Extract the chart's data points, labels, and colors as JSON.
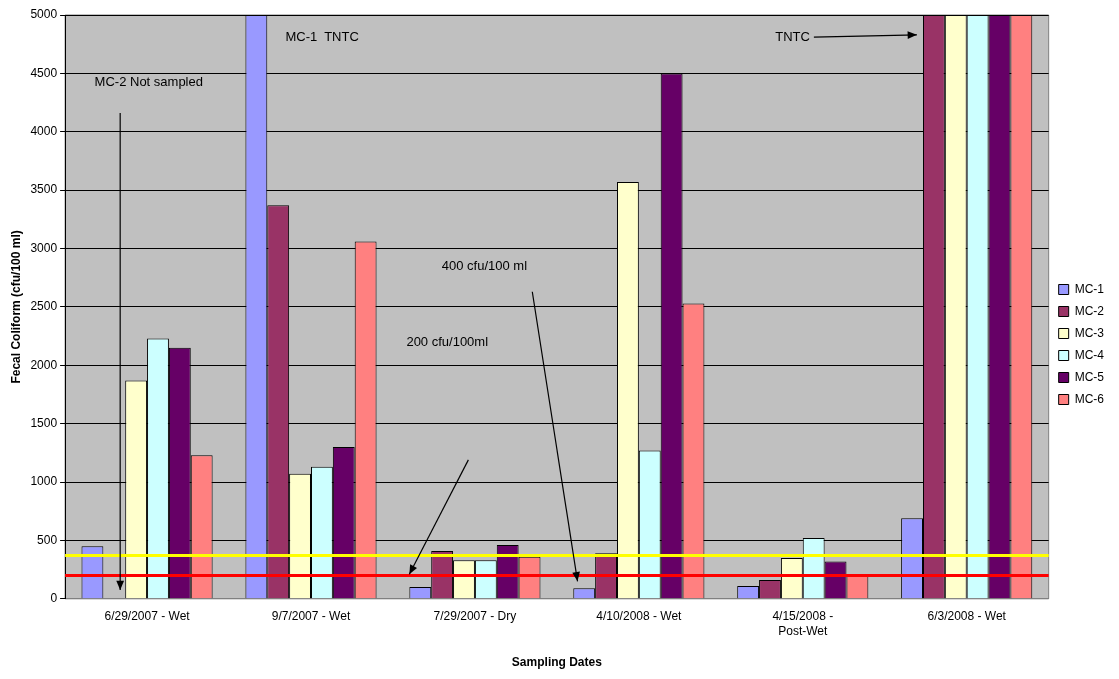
{
  "chart_data": {
    "type": "bar",
    "xlabel": "Sampling Dates",
    "ylabel": "Fecal Coliform (cfu/100 ml)",
    "categories": [
      "6/29/2007 - Wet",
      "9/7/2007 - Wet",
      "7/29/2007 - Dry",
      "4/10/2008 - Wet",
      "4/15/2008 - Post-Wet",
      "6/3/2008 - Wet"
    ],
    "series": [
      {
        "name": "MC-1",
        "color": "#9999ff",
        "values": [
          450,
          5000,
          100,
          90,
          110,
          690
        ]
      },
      {
        "name": "MC-2",
        "color": "#993366",
        "values": [
          null,
          3370,
          410,
          390,
          160,
          5000
        ]
      },
      {
        "name": "MC-3",
        "color": "#ffffcc",
        "values": [
          1870,
          1070,
          330,
          3570,
          350,
          5000
        ]
      },
      {
        "name": "MC-4",
        "color": "#ccffff",
        "values": [
          2230,
          1130,
          330,
          1270,
          520,
          5000
        ]
      },
      {
        "name": "MC-5",
        "color": "#660066",
        "values": [
          2150,
          1300,
          460,
          4500,
          320,
          5000
        ]
      },
      {
        "name": "MC-6",
        "color": "#ff8080",
        "values": [
          1230,
          3060,
          360,
          2530,
          200,
          5000
        ]
      }
    ],
    "ylim": [
      0,
      5000
    ],
    "yticks": [
      0,
      500,
      1000,
      1500,
      2000,
      2500,
      3000,
      3500,
      4000,
      4500,
      5000
    ],
    "grid": "y",
    "legend": "right",
    "ref_lines": [
      {
        "axis": "y",
        "value": 370,
        "color": "#ffff00"
      },
      {
        "axis": "y",
        "value": 200,
        "color": "#ff0000"
      }
    ],
    "annotations": [
      "MC-2 Not sampled",
      "MC-1  TNTC",
      "400 cfu/100 ml",
      "200 cfu/100ml",
      "TNTC"
    ]
  }
}
